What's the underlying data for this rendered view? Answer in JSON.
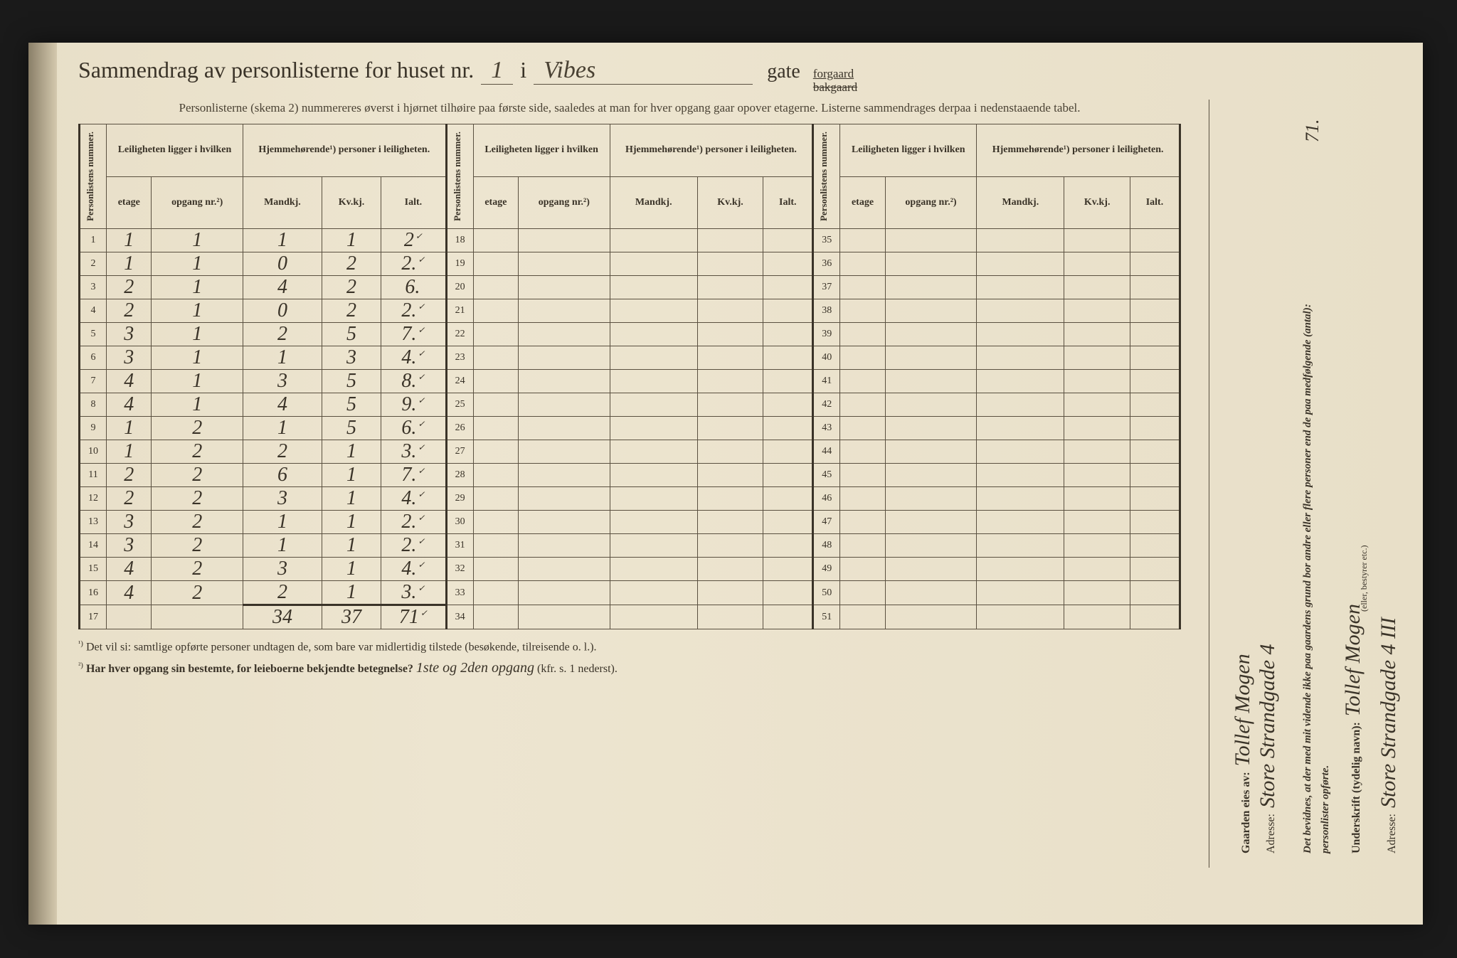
{
  "header": {
    "title_prefix": "Sammendrag av personlisterne for huset nr.",
    "house_nr": "1",
    "i_word": "i",
    "street": "Vibes",
    "gate_word": "gate",
    "forgaard": "forgaard",
    "bakgaard": "bakgaard",
    "subtitle": "Personlisterne (skema 2) nummereres øverst i hjørnet tilhøire paa første side, saaledes at man for hver opgang gaar opover etagerne.  Listerne sammendrages derpaa i nedenstaaende tabel."
  },
  "table_headers": {
    "personlistens": "Personlistens nummer.",
    "leiligheten": "Leiligheten ligger i hvilken",
    "hjemmehorende": "Hjemmehørende¹) personer i leiligheten.",
    "etage": "etage",
    "opgang": "opgang nr.²)",
    "mandkj": "Mandkj.",
    "kvkj": "Kv.kj.",
    "ialt": "Ialt."
  },
  "rows": [
    {
      "n": "1",
      "etage": "1",
      "opg": "1",
      "m": "1",
      "k": "1",
      "i": "2",
      "chk": "✓"
    },
    {
      "n": "2",
      "etage": "1",
      "opg": "1",
      "m": "0",
      "k": "2",
      "i": "2.",
      "chk": "✓"
    },
    {
      "n": "3",
      "etage": "2",
      "opg": "1",
      "m": "4",
      "k": "2",
      "i": "6.",
      "chk": ""
    },
    {
      "n": "4",
      "etage": "2",
      "opg": "1",
      "m": "0",
      "k": "2",
      "i": "2.",
      "chk": "✓"
    },
    {
      "n": "5",
      "etage": "3",
      "opg": "1",
      "m": "2",
      "k": "5",
      "i": "7.",
      "chk": "✓"
    },
    {
      "n": "6",
      "etage": "3",
      "opg": "1",
      "m": "1",
      "k": "3",
      "i": "4.",
      "chk": "✓"
    },
    {
      "n": "7",
      "etage": "4",
      "opg": "1",
      "m": "3",
      "k": "5",
      "i": "8.",
      "chk": "✓"
    },
    {
      "n": "8",
      "etage": "4",
      "opg": "1",
      "m": "4",
      "k": "5",
      "i": "9.",
      "chk": "✓"
    },
    {
      "n": "9",
      "etage": "1",
      "opg": "2",
      "m": "1",
      "k": "5",
      "i": "6.",
      "chk": "✓"
    },
    {
      "n": "10",
      "etage": "1",
      "opg": "2",
      "m": "2",
      "k": "1",
      "i": "3.",
      "chk": "✓"
    },
    {
      "n": "11",
      "etage": "2",
      "opg": "2",
      "m": "6",
      "k": "1",
      "i": "7.",
      "chk": "✓"
    },
    {
      "n": "12",
      "etage": "2",
      "opg": "2",
      "m": "3",
      "k": "1",
      "i": "4.",
      "chk": "✓"
    },
    {
      "n": "13",
      "etage": "3",
      "opg": "2",
      "m": "1",
      "k": "1",
      "i": "2.",
      "chk": "✓"
    },
    {
      "n": "14",
      "etage": "3",
      "opg": "2",
      "m": "1",
      "k": "1",
      "i": "2.",
      "chk": "✓"
    },
    {
      "n": "15",
      "etage": "4",
      "opg": "2",
      "m": "3",
      "k": "1",
      "i": "4.",
      "chk": "✓"
    },
    {
      "n": "16",
      "etage": "4",
      "opg": "2",
      "m": "2",
      "k": "1",
      "i": "3.",
      "chk": "✓"
    }
  ],
  "row17": "17",
  "rows_mid": [
    "18",
    "19",
    "20",
    "21",
    "22",
    "23",
    "24",
    "25",
    "26",
    "27",
    "28",
    "29",
    "30",
    "31",
    "32",
    "33",
    "34"
  ],
  "rows_right": [
    "35",
    "36",
    "37",
    "38",
    "39",
    "40",
    "41",
    "42",
    "43",
    "44",
    "45",
    "46",
    "47",
    "48",
    "49",
    "50",
    "51"
  ],
  "totals": {
    "m": "34",
    "k": "37",
    "i": "71"
  },
  "footnotes": {
    "f1_sup": "¹)",
    "f1": "Det vil si: samtlige opførte personer undtagen de, som bare var midlertidig tilstede (besøkende, tilreisende o. l.).",
    "f2_sup": "²)",
    "f2": "Har hver opgang sin bestemte, for leieboerne bekjendte betegnelse?",
    "f2_hw": "1ste og 2den opgang",
    "f2_suffix": "(kfr. s. 1 nederst)."
  },
  "right": {
    "eies": "Gaarden eies av:",
    "owner_hw": "Tollef Mogen",
    "adresse": "Adresse:",
    "adresse_hw": "Store Strandgade 4",
    "bevidnes": "Det bevidnes, at der med mit vidende ikke paa gaardens grund bor andre eller flere personer end de paa medfølgende (antal):",
    "count_hw": "71.",
    "personlister": "personlister opførte.",
    "underskrift": "Underskrift (tydelig navn):",
    "sig_hw": "Tollef Mogen",
    "adresse2": "Adresse:",
    "adresse2_hw": "Store Strandgade 4 III",
    "eller": "(eller, bestyrer etc.)"
  },
  "style": {
    "paper_color": "#e8dfc8",
    "ink_color": "#3a3328",
    "border_color": "#5a5040",
    "handwriting_color": "#3a3328"
  }
}
